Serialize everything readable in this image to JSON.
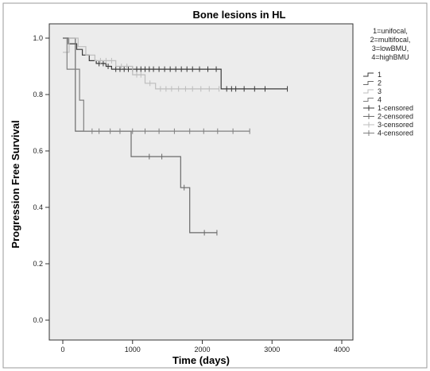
{
  "chart_data": {
    "type": "line",
    "subtype": "kaplan-meier",
    "title": "Bone lesions in HL",
    "xlabel": "Time (days)",
    "ylabel": "Progression Free Survival",
    "xlim": [
      0,
      4000
    ],
    "ylim": [
      0.0,
      1.0
    ],
    "xticks": [
      "0",
      "1000",
      "2000",
      "3000",
      "4000"
    ],
    "yticks": [
      "0.0",
      "0.2",
      "0.4",
      "0.6",
      "0.8",
      "1.0"
    ],
    "grid": false,
    "legend_title": [
      "1=unifocal,",
      "2=multifocal,",
      "3=lowBMU,",
      "4=highBMU"
    ],
    "legend_labels": [
      "1",
      "2",
      "3",
      "4",
      "1-censored",
      "2-censored",
      "3-censored",
      "4-censored"
    ],
    "series": [
      {
        "name": "1",
        "color": "#3a3a3a",
        "steps": [
          [
            0,
            1.0
          ],
          [
            80,
            1.0
          ],
          [
            80,
            0.98
          ],
          [
            200,
            0.98
          ],
          [
            200,
            0.96
          ],
          [
            280,
            0.96
          ],
          [
            280,
            0.94
          ],
          [
            380,
            0.94
          ],
          [
            380,
            0.92
          ],
          [
            480,
            0.92
          ],
          [
            480,
            0.91
          ],
          [
            620,
            0.91
          ],
          [
            620,
            0.9
          ],
          [
            700,
            0.9
          ],
          [
            700,
            0.89
          ],
          [
            2270,
            0.89
          ],
          [
            2270,
            0.82
          ],
          [
            3220,
            0.82
          ]
        ],
        "censored": [
          [
            520,
            0.91
          ],
          [
            580,
            0.91
          ],
          [
            650,
            0.9
          ],
          [
            760,
            0.89
          ],
          [
            820,
            0.89
          ],
          [
            880,
            0.89
          ],
          [
            940,
            0.89
          ],
          [
            1000,
            0.89
          ],
          [
            1060,
            0.89
          ],
          [
            1120,
            0.89
          ],
          [
            1180,
            0.89
          ],
          [
            1240,
            0.89
          ],
          [
            1300,
            0.89
          ],
          [
            1380,
            0.89
          ],
          [
            1460,
            0.89
          ],
          [
            1540,
            0.89
          ],
          [
            1620,
            0.89
          ],
          [
            1700,
            0.89
          ],
          [
            1780,
            0.89
          ],
          [
            1860,
            0.89
          ],
          [
            1960,
            0.89
          ],
          [
            2080,
            0.89
          ],
          [
            2200,
            0.89
          ],
          [
            2350,
            0.82
          ],
          [
            2420,
            0.82
          ],
          [
            2480,
            0.82
          ],
          [
            2600,
            0.82
          ],
          [
            2750,
            0.82
          ],
          [
            2900,
            0.82
          ],
          [
            3220,
            0.82
          ]
        ]
      },
      {
        "name": "2",
        "color": "#6a6a6a",
        "steps": [
          [
            0,
            1.0
          ],
          [
            180,
            1.0
          ],
          [
            180,
            0.67
          ],
          [
            980,
            0.67
          ],
          [
            980,
            0.58
          ],
          [
            1690,
            0.58
          ],
          [
            1690,
            0.47
          ],
          [
            1820,
            0.47
          ],
          [
            1820,
            0.31
          ],
          [
            2210,
            0.31
          ]
        ],
        "censored": [
          [
            1240,
            0.58
          ],
          [
            1420,
            0.58
          ],
          [
            1740,
            0.47
          ],
          [
            2030,
            0.31
          ],
          [
            2210,
            0.31
          ]
        ]
      },
      {
        "name": "3",
        "color": "#bdbdbd",
        "steps": [
          [
            0,
            0.95
          ],
          [
            90,
            0.95
          ],
          [
            90,
            1.0
          ],
          [
            220,
            1.0
          ],
          [
            220,
            0.97
          ],
          [
            330,
            0.97
          ],
          [
            330,
            0.94
          ],
          [
            460,
            0.94
          ],
          [
            460,
            0.92
          ],
          [
            760,
            0.92
          ],
          [
            760,
            0.9
          ],
          [
            1000,
            0.9
          ],
          [
            1000,
            0.87
          ],
          [
            1180,
            0.87
          ],
          [
            1180,
            0.84
          ],
          [
            1330,
            0.84
          ],
          [
            1330,
            0.82
          ],
          [
            2240,
            0.82
          ]
        ],
        "censored": [
          [
            540,
            0.92
          ],
          [
            620,
            0.92
          ],
          [
            700,
            0.92
          ],
          [
            840,
            0.9
          ],
          [
            920,
            0.9
          ],
          [
            1060,
            0.87
          ],
          [
            1120,
            0.87
          ],
          [
            1250,
            0.84
          ],
          [
            1400,
            0.82
          ],
          [
            1480,
            0.82
          ],
          [
            1560,
            0.82
          ],
          [
            1660,
            0.82
          ],
          [
            1760,
            0.82
          ],
          [
            1860,
            0.82
          ],
          [
            1980,
            0.82
          ],
          [
            2100,
            0.82
          ],
          [
            2240,
            0.82
          ]
        ]
      },
      {
        "name": "4",
        "color": "#808080",
        "steps": [
          [
            0,
            1.0
          ],
          [
            60,
            1.0
          ],
          [
            60,
            0.89
          ],
          [
            240,
            0.89
          ],
          [
            240,
            0.78
          ],
          [
            300,
            0.78
          ],
          [
            300,
            0.67
          ],
          [
            2680,
            0.67
          ]
        ],
        "censored": [
          [
            420,
            0.67
          ],
          [
            520,
            0.67
          ],
          [
            680,
            0.67
          ],
          [
            820,
            0.67
          ],
          [
            1000,
            0.67
          ],
          [
            1180,
            0.67
          ],
          [
            1380,
            0.67
          ],
          [
            1600,
            0.67
          ],
          [
            1820,
            0.67
          ],
          [
            2020,
            0.67
          ],
          [
            2220,
            0.67
          ],
          [
            2440,
            0.67
          ],
          [
            2680,
            0.67
          ]
        ]
      }
    ]
  }
}
